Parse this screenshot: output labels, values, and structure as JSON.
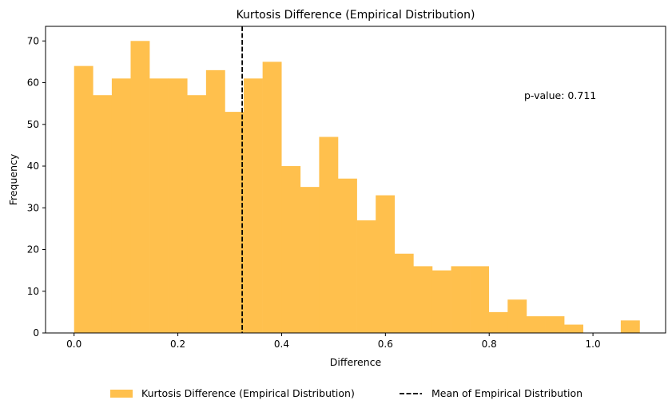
{
  "chart_data": {
    "type": "bar",
    "title": "Kurtosis Difference (Empirical Distribution)",
    "xlabel": "Difference",
    "ylabel": "Frequency",
    "xlim": [
      -0.055,
      1.14
    ],
    "ylim": [
      0,
      73.5
    ],
    "x_ticks": [
      0.0,
      0.2,
      0.4,
      0.6,
      0.8,
      1.0
    ],
    "x_tick_labels": [
      "0.0",
      "0.2",
      "0.4",
      "0.6",
      "0.8",
      "1.0"
    ],
    "y_ticks": [
      0,
      10,
      20,
      30,
      40,
      50,
      60,
      70
    ],
    "y_tick_labels": [
      "0",
      "10",
      "20",
      "30",
      "40",
      "50",
      "60",
      "70"
    ],
    "bin_width": 0.03633,
    "bin_start": 0.0,
    "counts": [
      64,
      57,
      61,
      70,
      61,
      61,
      57,
      63,
      53,
      61,
      65,
      40,
      35,
      47,
      37,
      27,
      33,
      19,
      16,
      15,
      16,
      16,
      5,
      8,
      4,
      4,
      2,
      0,
      0,
      3
    ],
    "mean_line_x": 0.324,
    "bar_color": "#ffc04d",
    "mean_line_color": "#000000",
    "annotation": "p-value: 0.711",
    "annotation_position": "top-right",
    "grid": false,
    "legend_position": "below",
    "legend": [
      {
        "label": "Kurtosis Difference (Empirical Distribution)",
        "kind": "patch",
        "color": "#ffc04d"
      },
      {
        "label": "Mean of Empirical Distribution",
        "kind": "dashed-line",
        "color": "#000000"
      }
    ]
  }
}
